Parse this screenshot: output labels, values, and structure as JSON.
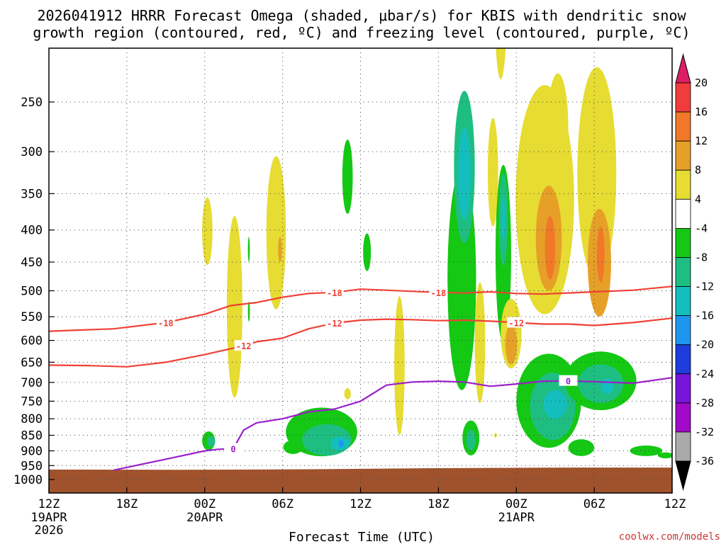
{
  "chart_data": {
    "type": "heatmap",
    "title_line1": "2026041912 HRRR Forecast Omega (shaded, μbar/s) for KBIS with dendritic snow",
    "title_line2": "growth region (contoured, red, ºC) and freezing level (contoured, purple, ºC)",
    "xlabel": "Forecast Time (UTC)",
    "credit": "coolwx.com/models",
    "x_ticks": [
      {
        "hour": 0,
        "label": "12Z",
        "date": "19APR",
        "year": "2026"
      },
      {
        "hour": 6,
        "label": "18Z"
      },
      {
        "hour": 12,
        "label": "00Z",
        "date": "20APR"
      },
      {
        "hour": 18,
        "label": "06Z"
      },
      {
        "hour": 24,
        "label": "12Z"
      },
      {
        "hour": 30,
        "label": "18Z"
      },
      {
        "hour": 36,
        "label": "00Z",
        "date": "21APR"
      },
      {
        "hour": 42,
        "label": "06Z"
      },
      {
        "hour": 48,
        "label": "12Z"
      }
    ],
    "x_range_hours": [
      0,
      48
    ],
    "y_range_hpa": [
      1025,
      200
    ],
    "y_ticks": [
      250,
      300,
      350,
      400,
      450,
      500,
      550,
      600,
      650,
      700,
      750,
      800,
      850,
      900,
      950,
      1000
    ],
    "colorbar": {
      "labels": [
        "20",
        "16",
        "12",
        "8",
        "4",
        "-4",
        "-8",
        "-12",
        "-16",
        "-20",
        "-24",
        "-28",
        "-32",
        "-36"
      ],
      "colors": [
        "#dc1e64",
        "#f03c3c",
        "#f07828",
        "#e6a028",
        "#e6dc32",
        "#ffffff",
        "#14c814",
        "#1ebe82",
        "#14bebe",
        "#1e96f0",
        "#1e3cdc",
        "#7814dc",
        "#a00ac8",
        "#aaaaaa",
        "#000000"
      ]
    },
    "dendritic_growth_contours": [
      {
        "label": "-18",
        "points": [
          [
            0,
            580
          ],
          [
            5,
            575
          ],
          [
            9,
            562
          ],
          [
            12,
            545
          ],
          [
            14,
            528
          ],
          [
            16,
            522
          ],
          [
            18,
            512
          ],
          [
            20,
            505
          ],
          [
            22,
            503
          ],
          [
            24,
            497
          ],
          [
            26,
            499
          ],
          [
            28,
            501
          ],
          [
            30,
            503
          ],
          [
            32,
            504
          ],
          [
            34,
            502
          ],
          [
            36,
            505
          ],
          [
            38,
            506
          ],
          [
            40,
            504
          ],
          [
            42,
            502
          ],
          [
            45,
            499
          ],
          [
            48,
            492
          ]
        ]
      },
      {
        "label": "-12",
        "points": [
          [
            0,
            657
          ],
          [
            3,
            658
          ],
          [
            6,
            661
          ],
          [
            9,
            650
          ],
          [
            12,
            632
          ],
          [
            15,
            612
          ],
          [
            16,
            603
          ],
          [
            18,
            595
          ],
          [
            20,
            575
          ],
          [
            22,
            563
          ],
          [
            24,
            557
          ],
          [
            26,
            555
          ],
          [
            28,
            556
          ],
          [
            30,
            558
          ],
          [
            32,
            557
          ],
          [
            34,
            559
          ],
          [
            36,
            562
          ],
          [
            38,
            565
          ],
          [
            40,
            565
          ],
          [
            42,
            568
          ],
          [
            45,
            562
          ],
          [
            48,
            553
          ]
        ]
      }
    ],
    "freezing_level_contour": {
      "label": "0",
      "points": [
        [
          5,
          966
        ],
        [
          9,
          928
        ],
        [
          12,
          900
        ],
        [
          13,
          895
        ],
        [
          14.2,
          893
        ],
        [
          15,
          834
        ],
        [
          16,
          812
        ],
        [
          18,
          800
        ],
        [
          20,
          780
        ],
        [
          22,
          772
        ],
        [
          24,
          750
        ],
        [
          26,
          707
        ],
        [
          28,
          699
        ],
        [
          30,
          697
        ],
        [
          32,
          699
        ],
        [
          34,
          710
        ],
        [
          36,
          704
        ],
        [
          38,
          697
        ],
        [
          40,
          696
        ],
        [
          42,
          698
        ],
        [
          45,
          702
        ],
        [
          48,
          688
        ]
      ]
    },
    "terrain_surface_hpa": [
      [
        0,
        964
      ],
      [
        10,
        965
      ],
      [
        20,
        963
      ],
      [
        30,
        959
      ],
      [
        40,
        957
      ],
      [
        48,
        957
      ]
    ],
    "omega_regions": [
      {
        "x": 12.2,
        "p": 405,
        "w": 0.8,
        "h": 100,
        "value": 6
      },
      {
        "x": 14.3,
        "p": 560,
        "w": 1.2,
        "h": 360,
        "value": 6
      },
      {
        "x": 17.5,
        "p": 420,
        "w": 1.5,
        "h": 230,
        "value": 6
      },
      {
        "x": 17.8,
        "p": 430,
        "w": 0.3,
        "h": 40,
        "value": 10
      },
      {
        "x": 15.4,
        "p": 430,
        "w": 0.15,
        "h": 40,
        "value": -6
      },
      {
        "x": 15.4,
        "p": 540,
        "w": 0.15,
        "h": 40,
        "value": -6
      },
      {
        "x": 12.3,
        "p": 868,
        "w": 1.0,
        "h": 60,
        "value": -6
      },
      {
        "x": 12.5,
        "p": 870,
        "w": 0.6,
        "h": 35,
        "value": -10
      },
      {
        "x": 18.8,
        "p": 888,
        "w": 1.5,
        "h": 45,
        "value": -6
      },
      {
        "x": 21.0,
        "p": 843,
        "w": 5.5,
        "h": 150,
        "value": -6
      },
      {
        "x": 21.4,
        "p": 866,
        "w": 3.8,
        "h": 100,
        "value": -10
      },
      {
        "x": 22.4,
        "p": 876,
        "w": 1.4,
        "h": 45,
        "value": -14
      },
      {
        "x": 22.5,
        "p": 877,
        "w": 0.4,
        "h": 25,
        "value": -18
      },
      {
        "x": 23.0,
        "p": 332,
        "w": 0.8,
        "h": 90,
        "value": -6
      },
      {
        "x": 23.0,
        "p": 730,
        "w": 0.5,
        "h": 30,
        "value": 6
      },
      {
        "x": 24.5,
        "p": 435,
        "w": 0.6,
        "h": 60,
        "value": -6
      },
      {
        "x": 27.0,
        "p": 680,
        "w": 0.8,
        "h": 340,
        "value": 6
      },
      {
        "x": 31.8,
        "p": 520,
        "w": 2.2,
        "h": 400,
        "value": -6
      },
      {
        "x": 32.0,
        "p": 330,
        "w": 1.6,
        "h": 180,
        "value": -10
      },
      {
        "x": 32.0,
        "p": 330,
        "w": 1.0,
        "h": 110,
        "value": -14
      },
      {
        "x": 33.2,
        "p": 620,
        "w": 0.8,
        "h": 270,
        "value": 6
      },
      {
        "x": 32.5,
        "p": 860,
        "w": 1.3,
        "h": 110,
        "value": -6
      },
      {
        "x": 32.5,
        "p": 865,
        "w": 0.7,
        "h": 65,
        "value": -10
      },
      {
        "x": 34.2,
        "p": 330,
        "w": 0.8,
        "h": 130,
        "value": 6
      },
      {
        "x": 35.0,
        "p": 460,
        "w": 1.2,
        "h": 290,
        "value": -6
      },
      {
        "x": 35.0,
        "p": 390,
        "w": 0.7,
        "h": 130,
        "value": -10
      },
      {
        "x": 35.0,
        "p": 385,
        "w": 0.3,
        "h": 60,
        "value": -14
      },
      {
        "x": 35.6,
        "p": 590,
        "w": 1.6,
        "h": 150,
        "value": 6
      },
      {
        "x": 35.6,
        "p": 610,
        "w": 0.9,
        "h": 90,
        "value": 10
      },
      {
        "x": 38.2,
        "p": 390,
        "w": 4.5,
        "h": 310,
        "value": 6
      },
      {
        "x": 38.5,
        "p": 420,
        "w": 2.0,
        "h": 160,
        "value": 10
      },
      {
        "x": 38.6,
        "p": 430,
        "w": 0.8,
        "h": 100,
        "value": 12
      },
      {
        "x": 39.2,
        "p": 280,
        "w": 1.6,
        "h": 110,
        "value": 6
      },
      {
        "x": 42.2,
        "p": 350,
        "w": 3.0,
        "h": 260,
        "value": 6
      },
      {
        "x": 42.4,
        "p": 460,
        "w": 1.8,
        "h": 180,
        "value": 10
      },
      {
        "x": 42.5,
        "p": 440,
        "w": 0.6,
        "h": 90,
        "value": 12
      },
      {
        "x": 34.8,
        "p": 150,
        "w": 1.0,
        "h": 160,
        "value": 6
      },
      {
        "x": 38.5,
        "p": 760,
        "w": 5.0,
        "h": 260,
        "value": -6
      },
      {
        "x": 38.8,
        "p": 770,
        "w": 3.5,
        "h": 190,
        "value": -10
      },
      {
        "x": 39.0,
        "p": 760,
        "w": 1.8,
        "h": 80,
        "value": -14
      },
      {
        "x": 42.5,
        "p": 700,
        "w": 5.5,
        "h": 150,
        "value": -6
      },
      {
        "x": 42.5,
        "p": 705,
        "w": 3.5,
        "h": 100,
        "value": -10
      },
      {
        "x": 43.0,
        "p": 710,
        "w": 1.0,
        "h": 40,
        "value": -14
      },
      {
        "x": 41.0,
        "p": 890,
        "w": 2.0,
        "h": 55,
        "value": -6
      },
      {
        "x": 46.0,
        "p": 900,
        "w": 2.5,
        "h": 35,
        "value": -6
      },
      {
        "x": 47.5,
        "p": 915,
        "w": 1.2,
        "h": 20,
        "value": -6
      },
      {
        "x": 34.4,
        "p": 850,
        "w": 0.2,
        "h": 15,
        "value": 6
      }
    ]
  }
}
